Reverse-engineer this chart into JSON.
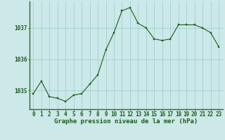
{
  "x": [
    0,
    1,
    2,
    3,
    4,
    5,
    6,
    7,
    8,
    9,
    10,
    11,
    12,
    13,
    14,
    15,
    16,
    17,
    18,
    19,
    20,
    21,
    22,
    23
  ],
  "y": [
    1034.9,
    1035.3,
    1034.8,
    1034.75,
    1034.65,
    1034.85,
    1034.9,
    1035.2,
    1035.5,
    1036.3,
    1036.85,
    1037.55,
    1037.65,
    1037.15,
    1037.0,
    1036.65,
    1036.6,
    1036.65,
    1037.1,
    1037.1,
    1037.1,
    1037.0,
    1036.85,
    1036.4
  ],
  "line_color": "#1a5c1a",
  "marker_color": "#1a5c1a",
  "bg_color": "#cce8e8",
  "grid_color": "#99cccc",
  "border_color": "#336633",
  "xlabel": "Graphe pression niveau de la mer (hPa)",
  "xlabel_color": "#1a5c1a",
  "xlabel_fontsize": 6.5,
  "tick_label_color": "#1a5c1a",
  "tick_fontsize": 5.5,
  "ytick_labels": [
    "1035",
    "1036",
    "1037"
  ],
  "ytick_values": [
    1035,
    1036,
    1037
  ],
  "ylim": [
    1034.4,
    1037.85
  ],
  "xlim": [
    -0.5,
    23.5
  ],
  "figsize": [
    3.2,
    2.0
  ],
  "dpi": 100
}
